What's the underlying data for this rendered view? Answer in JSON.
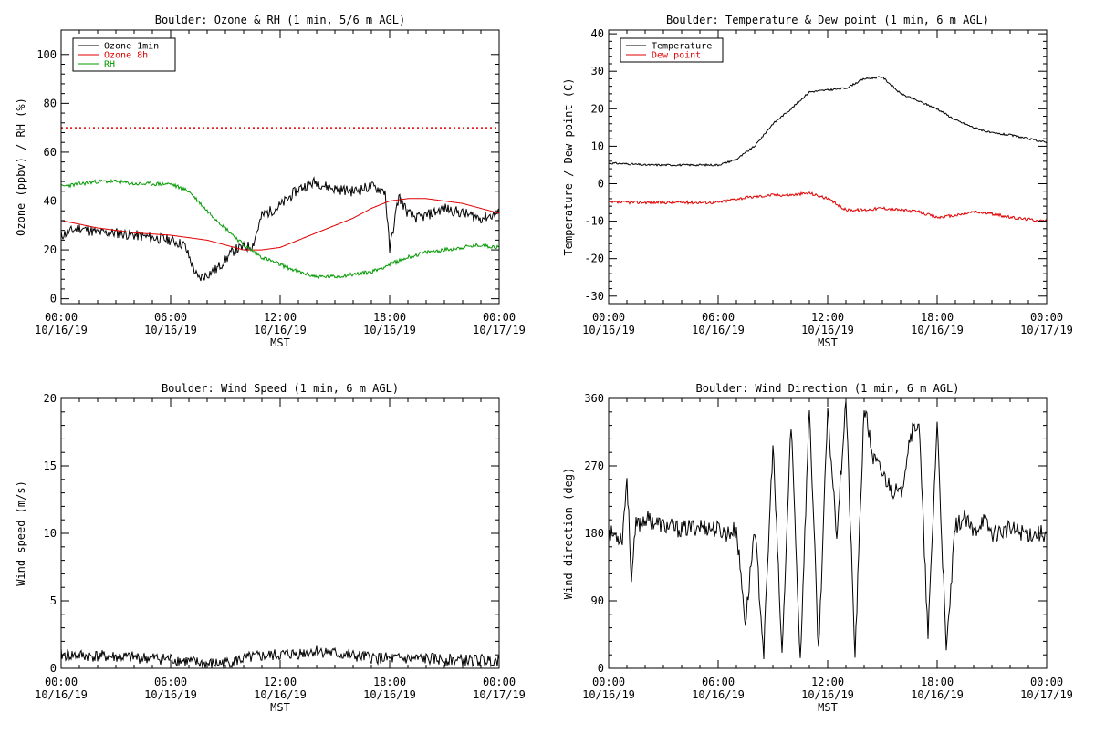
{
  "page": {
    "background": "#ffffff"
  },
  "chart_data": [
    {
      "type": "line",
      "title": "Boulder: Ozone & RH (1 min, 5/6 m AGL)",
      "xlabel": "MST",
      "ylabel": "Ozone (ppbv) / RH (%)",
      "xlim": [
        "10/16/19 00:00",
        "10/17/19 00:00"
      ],
      "ylim": [
        -2,
        110
      ],
      "yticks": [
        0,
        20,
        40,
        60,
        80,
        100
      ],
      "xticks": [
        {
          "time": "00:00",
          "date": "10/16/19"
        },
        {
          "time": "06:00",
          "date": "10/16/19"
        },
        {
          "time": "12:00",
          "date": "10/16/19"
        },
        {
          "time": "18:00",
          "date": "10/16/19"
        },
        {
          "time": "00:00",
          "date": "10/17/19"
        }
      ],
      "legend": {
        "position": "top-left"
      },
      "reference_lines": [
        {
          "y": 70,
          "color": "#e00000",
          "style": "dotted"
        }
      ],
      "series": [
        {
          "name": "Ozone 1min",
          "color": "#000000",
          "noise": 2.2,
          "seed": 11,
          "x": [
            "00:00",
            "01:00",
            "02:00",
            "03:00",
            "04:00",
            "05:00",
            "06:00",
            "06:45",
            "07:30",
            "08:30",
            "09:30",
            "10:30",
            "11:00",
            "12:00",
            "13:00",
            "14:00",
            "14:30",
            "15:00",
            "16:00",
            "17:00",
            "17:45",
            "18:00",
            "18:30",
            "19:00",
            "19:30",
            "20:00",
            "21:00",
            "22:00",
            "23:00",
            "24:00"
          ],
          "y": [
            26,
            29,
            27,
            27,
            26,
            25,
            24,
            22,
            8,
            12,
            20,
            22,
            34,
            38,
            45,
            48,
            46,
            45,
            44,
            46,
            44,
            20,
            42,
            35,
            33,
            34,
            37,
            35,
            33,
            35
          ]
        },
        {
          "name": "Ozone 8h",
          "color": "#e00000",
          "noise": 0,
          "seed": 0,
          "x": [
            "00:00",
            "02:00",
            "04:00",
            "06:00",
            "07:00",
            "08:00",
            "09:00",
            "10:00",
            "11:00",
            "12:00",
            "13:00",
            "14:00",
            "15:00",
            "16:00",
            "17:00",
            "18:00",
            "19:00",
            "20:00",
            "21:00",
            "22:00",
            "23:00",
            "24:00"
          ],
          "y": [
            32,
            29,
            27,
            26,
            25,
            24,
            22,
            20,
            20,
            21,
            24,
            27,
            30,
            33,
            37,
            40,
            41,
            41,
            40,
            39,
            37,
            35
          ]
        },
        {
          "name": "RH",
          "color": "#009900",
          "noise": 0.8,
          "seed": 23,
          "x": [
            "00:00",
            "01:00",
            "02:00",
            "03:00",
            "04:00",
            "05:00",
            "06:00",
            "07:00",
            "08:00",
            "09:00",
            "10:00",
            "11:00",
            "12:00",
            "13:00",
            "14:00",
            "15:00",
            "16:00",
            "17:00",
            "18:00",
            "19:00",
            "20:00",
            "21:00",
            "22:00",
            "23:00",
            "24:00"
          ],
          "y": [
            46,
            47,
            48,
            48,
            47,
            47,
            47,
            44,
            36,
            29,
            22,
            17,
            14,
            11,
            9,
            9,
            10,
            11,
            14,
            17,
            19,
            20,
            21,
            22,
            21
          ]
        }
      ]
    },
    {
      "type": "line",
      "title": "Boulder: Temperature & Dew point (1 min, 6 m AGL)",
      "xlabel": "MST",
      "ylabel": "Temperature / Dew point (C)",
      "xlim": [
        "10/16/19 00:00",
        "10/17/19 00:00"
      ],
      "ylim": [
        -32,
        41
      ],
      "yticks": [
        -30,
        -20,
        -10,
        0,
        10,
        20,
        30,
        40
      ],
      "xticks": [
        {
          "time": "00:00",
          "date": "10/16/19"
        },
        {
          "time": "06:00",
          "date": "10/16/19"
        },
        {
          "time": "12:00",
          "date": "10/16/19"
        },
        {
          "time": "18:00",
          "date": "10/16/19"
        },
        {
          "time": "00:00",
          "date": "10/17/19"
        }
      ],
      "legend": {
        "position": "top-left"
      },
      "series": [
        {
          "name": "Temperature",
          "color": "#000000",
          "noise": 0.25,
          "seed": 31,
          "x": [
            "00:00",
            "01:00",
            "02:00",
            "03:00",
            "04:00",
            "05:00",
            "06:00",
            "07:00",
            "08:00",
            "09:00",
            "10:00",
            "11:00",
            "12:00",
            "13:00",
            "14:00",
            "15:00",
            "16:00",
            "17:00",
            "18:00",
            "19:00",
            "20:00",
            "21:00",
            "22:00",
            "23:00",
            "24:00"
          ],
          "y": [
            5.5,
            5.3,
            5,
            5,
            5,
            5,
            5,
            6.5,
            10,
            16,
            20,
            24.5,
            25,
            25.5,
            28,
            28.5,
            24,
            22,
            20,
            17,
            15,
            13.5,
            13,
            12,
            11
          ]
        },
        {
          "name": "Dew point",
          "color": "#e00000",
          "noise": 0.4,
          "seed": 37,
          "x": [
            "00:00",
            "02:00",
            "04:00",
            "06:00",
            "07:00",
            "08:00",
            "09:00",
            "10:00",
            "11:00",
            "12:00",
            "13:00",
            "14:00",
            "15:00",
            "16:00",
            "17:00",
            "18:00",
            "19:00",
            "20:00",
            "21:00",
            "22:00",
            "23:00",
            "24:00"
          ],
          "y": [
            -5,
            -5,
            -5,
            -5,
            -4,
            -3.5,
            -3,
            -3,
            -2.5,
            -4,
            -7,
            -7,
            -6.5,
            -7,
            -7.5,
            -9,
            -8.5,
            -7.5,
            -8,
            -9,
            -9.5,
            -10
          ]
        }
      ]
    },
    {
      "type": "line",
      "title": "Boulder: Wind Speed (1 min, 6 m AGL)",
      "xlabel": "MST",
      "ylabel": "Wind speed (m/s)",
      "xlim": [
        "10/16/19 00:00",
        "10/17/19 00:00"
      ],
      "ylim": [
        0,
        20
      ],
      "yticks": [
        0,
        5,
        10,
        15,
        20
      ],
      "xticks": [
        {
          "time": "00:00",
          "date": "10/16/19"
        },
        {
          "time": "06:00",
          "date": "10/16/19"
        },
        {
          "time": "12:00",
          "date": "10/16/19"
        },
        {
          "time": "18:00",
          "date": "10/16/19"
        },
        {
          "time": "00:00",
          "date": "10/17/19"
        }
      ],
      "series": [
        {
          "name": "",
          "color": "#000000",
          "noise": 0.45,
          "seed": 41,
          "x": [
            "00:00",
            "02:00",
            "04:00",
            "06:00",
            "07:00",
            "08:00",
            "09:00",
            "10:00",
            "11:00",
            "12:00",
            "13:00",
            "14:00",
            "15:00",
            "16:00",
            "17:00",
            "18:00",
            "20:00",
            "22:00",
            "24:00"
          ],
          "y": [
            1,
            0.9,
            0.8,
            0.7,
            0.5,
            0.3,
            0.4,
            0.7,
            0.9,
            1,
            1.1,
            1.3,
            1.1,
            0.9,
            0.8,
            0.7,
            0.7,
            0.6,
            0.6
          ]
        }
      ]
    },
    {
      "type": "line",
      "title": "Boulder: Wind Direction (1 min, 6 m AGL)",
      "xlabel": "MST",
      "ylabel": "Wind direction (deg)",
      "xlim": [
        "10/16/19 00:00",
        "10/17/19 00:00"
      ],
      "ylim": [
        0,
        360
      ],
      "yticks": [
        0,
        90,
        180,
        270,
        360
      ],
      "xticks": [
        {
          "time": "00:00",
          "date": "10/16/19"
        },
        {
          "time": "06:00",
          "date": "10/16/19"
        },
        {
          "time": "12:00",
          "date": "10/16/19"
        },
        {
          "time": "18:00",
          "date": "10/16/19"
        },
        {
          "time": "00:00",
          "date": "10/17/19"
        }
      ],
      "series": [
        {
          "name": "",
          "color": "#000000",
          "noise": 12,
          "seed": 53,
          "x": [
            "00:00",
            "00:45",
            "01:00",
            "01:15",
            "01:30",
            "02:00",
            "03:00",
            "04:00",
            "05:00",
            "06:00",
            "06:30",
            "07:00",
            "07:30",
            "08:00",
            "08:30",
            "09:00",
            "09:30",
            "10:00",
            "10:30",
            "11:00",
            "11:30",
            "12:00",
            "12:30",
            "13:00",
            "13:30",
            "14:00",
            "14:30",
            "15:00",
            "15:30",
            "16:00",
            "16:30",
            "17:00",
            "17:30",
            "18:00",
            "18:30",
            "19:00",
            "19:30",
            "20:00",
            "20:30",
            "21:00",
            "22:00",
            "23:00",
            "24:00"
          ],
          "y": [
            180,
            175,
            255,
            120,
            190,
            200,
            190,
            185,
            190,
            185,
            180,
            185,
            60,
            190,
            20,
            300,
            15,
            330,
            10,
            350,
            20,
            340,
            180,
            360,
            15,
            350,
            280,
            260,
            240,
            230,
            310,
            330,
            40,
            330,
            20,
            190,
            200,
            180,
            200,
            180,
            185,
            180,
            180
          ]
        }
      ]
    }
  ]
}
